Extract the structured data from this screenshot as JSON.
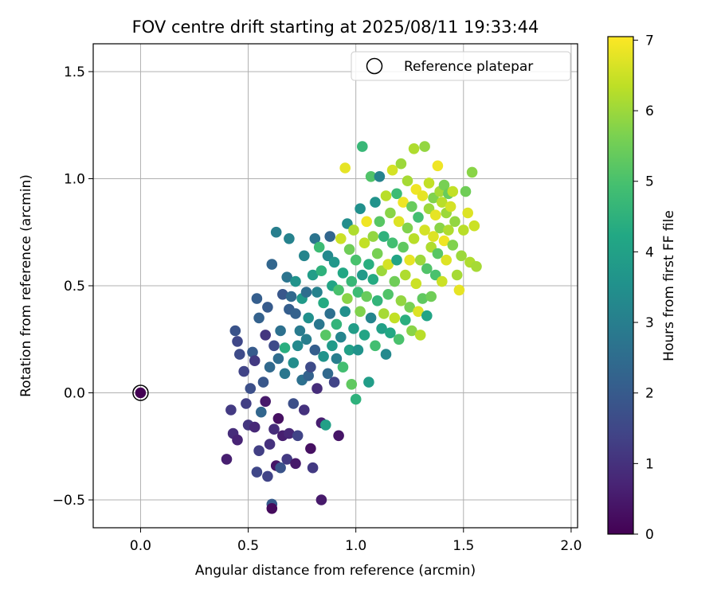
{
  "chart_data": {
    "type": "scatter",
    "title": "FOV centre drift starting at 2025/08/11 19:33:44",
    "xlabel": "Angular distance from reference (arcmin)",
    "ylabel": "Rotation from reference (arcmin)",
    "xlim": [
      -0.22,
      2.03
    ],
    "ylim": [
      -0.63,
      1.63
    ],
    "xticks": [
      0.0,
      0.5,
      1.0,
      1.5,
      2.0
    ],
    "xtick_labels": [
      "0.0",
      "0.5",
      "1.0",
      "1.5",
      "2.0"
    ],
    "yticks": [
      -0.5,
      0.0,
      0.5,
      1.0,
      1.5
    ],
    "ytick_labels": [
      "−0.5",
      "0.0",
      "0.5",
      "1.0",
      "1.5"
    ],
    "grid": true,
    "legend": {
      "location": "upper right",
      "entries": [
        "Reference platepar"
      ]
    },
    "colorbar": {
      "label": "Hours from first FF file",
      "range": [
        0,
        7.05
      ],
      "ticks": [
        0,
        1,
        2,
        3,
        4,
        5,
        6,
        7
      ],
      "tick_labels": [
        "0",
        "1",
        "2",
        "3",
        "4",
        "5",
        "6",
        "7"
      ],
      "colormap": "viridis"
    },
    "reference_point": {
      "x": 0.0,
      "y": 0.0,
      "label": "Reference platepar"
    },
    "points": [
      [
        0.0,
        0.0,
        0.0
      ],
      [
        0.4,
        -0.31,
        0.6
      ],
      [
        0.42,
        -0.08,
        1.2
      ],
      [
        0.43,
        -0.19,
        0.9
      ],
      [
        0.44,
        0.29,
        1.8
      ],
      [
        0.45,
        -0.22,
        0.7
      ],
      [
        0.45,
        0.24,
        1.5
      ],
      [
        0.46,
        0.18,
        1.6
      ],
      [
        0.48,
        0.1,
        1.4
      ],
      [
        0.49,
        -0.05,
        1.3
      ],
      [
        0.5,
        -0.15,
        1.1
      ],
      [
        0.51,
        0.02,
        1.7
      ],
      [
        0.52,
        0.19,
        2.0
      ],
      [
        0.53,
        -0.16,
        0.8
      ],
      [
        0.53,
        0.15,
        1.2
      ],
      [
        0.54,
        0.44,
        2.1
      ],
      [
        0.54,
        -0.37,
        1.5
      ],
      [
        0.55,
        -0.27,
        1.3
      ],
      [
        0.55,
        0.35,
        2.2
      ],
      [
        0.56,
        -0.09,
        2.3
      ],
      [
        0.57,
        0.05,
        1.9
      ],
      [
        0.58,
        0.27,
        1.1
      ],
      [
        0.58,
        -0.04,
        0.5
      ],
      [
        0.59,
        -0.39,
        1.4
      ],
      [
        0.59,
        0.4,
        2.0
      ],
      [
        0.6,
        -0.24,
        1.0
      ],
      [
        0.6,
        0.12,
        2.4
      ],
      [
        0.61,
        -0.52,
        2.0
      ],
      [
        0.61,
        0.6,
        2.3
      ],
      [
        0.61,
        -0.54,
        0.2
      ],
      [
        0.62,
        0.22,
        1.6
      ],
      [
        0.62,
        -0.17,
        0.9
      ],
      [
        0.63,
        0.75,
        3.0
      ],
      [
        0.63,
        -0.34,
        0.4
      ],
      [
        0.64,
        0.16,
        2.5
      ],
      [
        0.64,
        -0.12,
        0.3
      ],
      [
        0.65,
        0.29,
        2.6
      ],
      [
        0.65,
        -0.35,
        1.8
      ],
      [
        0.66,
        0.46,
        1.9
      ],
      [
        0.66,
        -0.2,
        0.6
      ],
      [
        0.67,
        0.09,
        2.8
      ],
      [
        0.67,
        0.21,
        4.4
      ],
      [
        0.68,
        0.54,
        2.7
      ],
      [
        0.68,
        -0.31,
        1.2
      ],
      [
        0.69,
        0.39,
        2.1
      ],
      [
        0.69,
        0.72,
        3.1
      ],
      [
        0.69,
        -0.19,
        0.8
      ],
      [
        0.7,
        0.45,
        2.4
      ],
      [
        0.71,
        -0.05,
        1.7
      ],
      [
        0.71,
        0.14,
        3.4
      ],
      [
        0.72,
        0.52,
        3.6
      ],
      [
        0.72,
        0.37,
        2.2
      ],
      [
        0.72,
        -0.33,
        0.5
      ],
      [
        0.73,
        -0.2,
        1.4
      ],
      [
        0.73,
        0.22,
        3.3
      ],
      [
        0.74,
        0.29,
        2.9
      ],
      [
        0.75,
        0.44,
        3.8
      ],
      [
        0.75,
        0.06,
        2.6
      ],
      [
        0.76,
        0.64,
        3.2
      ],
      [
        0.76,
        -0.08,
        1.0
      ],
      [
        0.77,
        0.25,
        3.0
      ],
      [
        0.77,
        0.47,
        2.5
      ],
      [
        0.78,
        0.08,
        2.2
      ],
      [
        0.78,
        0.35,
        3.5
      ],
      [
        0.79,
        -0.26,
        0.3
      ],
      [
        0.79,
        0.12,
        1.6
      ],
      [
        0.8,
        0.55,
        3.9
      ],
      [
        0.8,
        -0.35,
        1.2
      ],
      [
        0.81,
        0.72,
        2.7
      ],
      [
        0.81,
        0.2,
        2.1
      ],
      [
        0.82,
        0.47,
        3.1
      ],
      [
        0.82,
        0.02,
        0.9
      ],
      [
        0.83,
        0.32,
        2.8
      ],
      [
        0.83,
        0.68,
        4.8
      ],
      [
        0.84,
        -0.14,
        0.6
      ],
      [
        0.84,
        0.57,
        4.5
      ],
      [
        0.84,
        -0.5,
        0.5
      ],
      [
        0.85,
        0.17,
        3.6
      ],
      [
        0.85,
        0.42,
        4.3
      ],
      [
        0.86,
        0.27,
        5.2
      ],
      [
        0.86,
        -0.15,
        4.0
      ],
      [
        0.87,
        0.64,
        3.3
      ],
      [
        0.87,
        0.09,
        2.4
      ],
      [
        0.88,
        0.37,
        2.6
      ],
      [
        0.88,
        0.73,
        2.3
      ],
      [
        0.89,
        0.5,
        4.1
      ],
      [
        0.89,
        0.22,
        3.8
      ],
      [
        0.9,
        0.05,
        1.4
      ],
      [
        0.9,
        0.61,
        3.7
      ],
      [
        0.91,
        0.32,
        4.6
      ],
      [
        0.91,
        0.16,
        3.0
      ],
      [
        0.92,
        -0.2,
        0.4
      ],
      [
        0.92,
        0.48,
        5.0
      ],
      [
        0.93,
        0.72,
        6.5
      ],
      [
        0.93,
        0.26,
        3.2
      ],
      [
        0.94,
        0.12,
        4.9
      ],
      [
        0.94,
        0.56,
        4.2
      ],
      [
        0.95,
        0.38,
        3.5
      ],
      [
        0.95,
        1.05,
        6.8
      ],
      [
        0.96,
        0.79,
        3.4
      ],
      [
        0.96,
        0.44,
        5.8
      ],
      [
        0.97,
        0.2,
        4.0
      ],
      [
        0.97,
        0.67,
        5.5
      ],
      [
        0.98,
        0.04,
        5.3
      ],
      [
        0.98,
        0.52,
        4.7
      ],
      [
        0.99,
        0.3,
        3.9
      ],
      [
        0.99,
        0.76,
        6.2
      ],
      [
        1.0,
        -0.03,
        4.5
      ],
      [
        1.0,
        0.62,
        5.0
      ],
      [
        1.01,
        0.47,
        4.8
      ],
      [
        1.01,
        0.2,
        3.6
      ],
      [
        1.02,
        0.86,
        3.5
      ],
      [
        1.02,
        0.38,
        5.7
      ],
      [
        1.03,
        1.15,
        4.7
      ],
      [
        1.03,
        0.55,
        3.8
      ],
      [
        1.04,
        0.7,
        6.4
      ],
      [
        1.04,
        0.27,
        4.1
      ],
      [
        1.05,
        0.8,
        6.9
      ],
      [
        1.05,
        0.45,
        5.4
      ],
      [
        1.06,
        0.05,
        3.9
      ],
      [
        1.06,
        0.6,
        4.4
      ],
      [
        1.07,
        1.01,
        5.1
      ],
      [
        1.07,
        0.35,
        3.2
      ],
      [
        1.08,
        0.73,
        5.9
      ],
      [
        1.08,
        0.53,
        4.3
      ],
      [
        1.09,
        0.89,
        3.6
      ],
      [
        1.09,
        0.22,
        4.9
      ],
      [
        1.1,
        0.65,
        5.6
      ],
      [
        1.1,
        0.43,
        4.6
      ],
      [
        1.11,
        1.01,
        3.1
      ],
      [
        1.11,
        0.8,
        5.2
      ],
      [
        1.12,
        0.3,
        4.0
      ],
      [
        1.12,
        0.57,
        6.0
      ],
      [
        1.13,
        0.73,
        4.5
      ],
      [
        1.13,
        0.37,
        6.1
      ],
      [
        1.14,
        0.92,
        6.3
      ],
      [
        1.14,
        0.18,
        3.3
      ],
      [
        1.15,
        0.6,
        6.6
      ],
      [
        1.15,
        0.46,
        5.1
      ],
      [
        1.16,
        0.84,
        5.8
      ],
      [
        1.16,
        0.28,
        4.2
      ],
      [
        1.17,
        1.04,
        6.6
      ],
      [
        1.17,
        0.7,
        4.9
      ],
      [
        1.18,
        0.52,
        5.5
      ],
      [
        1.18,
        0.35,
        6.4
      ],
      [
        1.19,
        0.93,
        4.8
      ],
      [
        1.19,
        0.62,
        4.1
      ],
      [
        1.2,
        0.8,
        6.7
      ],
      [
        1.2,
        0.25,
        5.0
      ],
      [
        1.21,
        1.07,
        6.0
      ],
      [
        1.21,
        0.43,
        5.9
      ],
      [
        1.22,
        0.68,
        5.3
      ],
      [
        1.22,
        0.89,
        6.9
      ],
      [
        1.23,
        0.55,
        6.2
      ],
      [
        1.23,
        0.34,
        4.4
      ],
      [
        1.24,
        0.77,
        5.7
      ],
      [
        1.24,
        0.99,
        6.1
      ],
      [
        1.25,
        0.62,
        6.8
      ],
      [
        1.25,
        0.4,
        5.6
      ],
      [
        1.26,
        0.87,
        5.4
      ],
      [
        1.26,
        0.29,
        5.8
      ],
      [
        1.27,
        0.72,
        6.3
      ],
      [
        1.27,
        1.14,
        6.2
      ],
      [
        1.28,
        0.51,
        6.5
      ],
      [
        1.28,
        0.95,
        6.9
      ],
      [
        1.29,
        0.38,
        6.7
      ],
      [
        1.29,
        0.82,
        4.9
      ],
      [
        1.3,
        0.62,
        6.0
      ],
      [
        1.3,
        0.27,
        6.3
      ],
      [
        1.31,
        0.92,
        6.8
      ],
      [
        1.31,
        0.44,
        5.3
      ],
      [
        1.32,
        0.76,
        6.6
      ],
      [
        1.32,
        1.15,
        5.9
      ],
      [
        1.33,
        0.58,
        5.1
      ],
      [
        1.33,
        0.36,
        4.1
      ],
      [
        1.34,
        0.86,
        6.0
      ],
      [
        1.34,
        0.98,
        6.4
      ],
      [
        1.35,
        0.68,
        6.2
      ],
      [
        1.35,
        0.45,
        5.5
      ],
      [
        1.36,
        0.91,
        5.7
      ],
      [
        1.36,
        0.73,
        6.7
      ],
      [
        1.37,
        0.55,
        5.0
      ],
      [
        1.37,
        0.83,
        6.8
      ],
      [
        1.38,
        1.06,
        6.9
      ],
      [
        1.38,
        0.65,
        5.2
      ],
      [
        1.39,
        0.94,
        6.1
      ],
      [
        1.39,
        0.77,
        5.8
      ],
      [
        1.4,
        0.52,
        6.5
      ],
      [
        1.4,
        0.89,
        6.3
      ],
      [
        1.41,
        0.71,
        6.9
      ],
      [
        1.41,
        0.97,
        5.6
      ],
      [
        1.42,
        0.84,
        6.0
      ],
      [
        1.42,
        0.62,
        6.7
      ],
      [
        1.43,
        0.93,
        5.4
      ],
      [
        1.43,
        0.76,
        6.2
      ],
      [
        1.44,
        0.87,
        6.6
      ],
      [
        1.45,
        0.69,
        5.7
      ],
      [
        1.45,
        0.94,
        6.4
      ],
      [
        1.46,
        0.8,
        5.9
      ],
      [
        1.47,
        0.55,
        6.1
      ],
      [
        1.48,
        0.48,
        6.8
      ],
      [
        1.49,
        0.64,
        6.0
      ],
      [
        1.5,
        0.76,
        6.3
      ],
      [
        1.51,
        0.94,
        5.5
      ],
      [
        1.52,
        0.84,
        6.7
      ],
      [
        1.53,
        0.61,
        6.2
      ],
      [
        1.54,
        1.03,
        5.8
      ],
      [
        1.55,
        0.78,
        6.5
      ],
      [
        1.56,
        0.59,
        6.1
      ]
    ]
  }
}
